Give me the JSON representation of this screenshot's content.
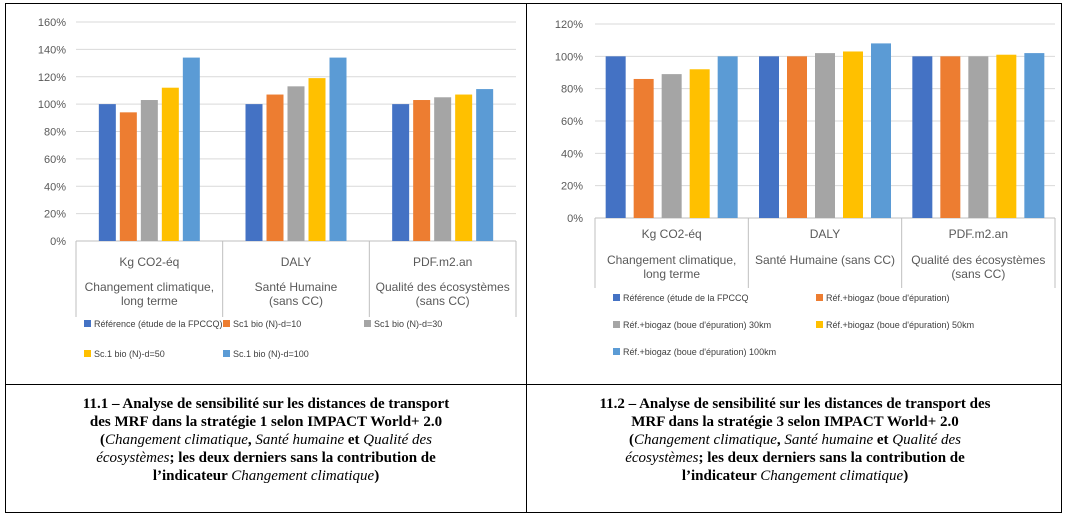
{
  "chart_data": [
    {
      "type": "bar",
      "categories": [
        "Kg CO2-éq",
        "DALY",
        "PDF.m2.an"
      ],
      "subcategories": [
        "Changement climatique,\nlong terme",
        "Santé Humaine\n(sans CC)",
        "Qualité des écosystèmes\n(sans CC)"
      ],
      "ylim": [
        0,
        160
      ],
      "yticks": [
        "0%",
        "20%",
        "40%",
        "60%",
        "80%",
        "100%",
        "120%",
        "140%",
        "160%"
      ],
      "series": [
        {
          "name": "Référence (étude de la FPCCQ)",
          "color": "#4472C4",
          "values": [
            100,
            100,
            100
          ]
        },
        {
          "name": "Sc1 bio (N)-d=10",
          "color": "#ED7D31",
          "values": [
            94,
            107,
            103
          ]
        },
        {
          "name": "Sc1 bio (N)-d=30",
          "color": "#A5A5A5",
          "values": [
            103,
            113,
            105
          ]
        },
        {
          "name": "Sc.1 bio (N)-d=50",
          "color": "#FFC000",
          "values": [
            112,
            119,
            107
          ]
        },
        {
          "name": "Sc.1 bio (N)-d=100",
          "color": "#5B9BD5",
          "values": [
            134,
            134,
            111
          ]
        }
      ]
    },
    {
      "type": "bar",
      "categories": [
        "Kg CO2-éq",
        "DALY",
        "PDF.m2.an"
      ],
      "subcategories": [
        "Changement climatique,\nlong terme",
        "Santé Humaine (sans CC)",
        "Qualité des écosystèmes\n(sans CC)"
      ],
      "ylim": [
        0,
        120
      ],
      "yticks": [
        "0%",
        "20%",
        "40%",
        "60%",
        "80%",
        "100%",
        "120%"
      ],
      "series": [
        {
          "name": "Référence (étude de la FPCCQ",
          "color": "#4472C4",
          "values": [
            100,
            100,
            100
          ]
        },
        {
          "name": "Réf.+biogaz (boue d'épuration)",
          "color": "#ED7D31",
          "values": [
            86,
            100,
            100
          ]
        },
        {
          "name": "Réf.+biogaz (boue d'épuration) 30km",
          "color": "#A5A5A5",
          "values": [
            89,
            102,
            100
          ]
        },
        {
          "name": "Réf.+biogaz (boue d'épuration) 50km",
          "color": "#FFC000",
          "values": [
            92,
            103,
            101
          ]
        },
        {
          "name": "Réf.+biogaz (boue d'épuration) 100km",
          "color": "#5B9BD5",
          "values": [
            100,
            108,
            102
          ]
        }
      ]
    }
  ],
  "captions": [
    {
      "line1": "11.1 – Analyse de sensibilité sur les distances de transport",
      "line2": "des MRF dans la stratégie 1 selon IMPACT World+ 2.0",
      "open_paren": "(",
      "ital1": "Changement climatique",
      "comma": ", ",
      "ital2": "Santé humaine",
      "et": " et ",
      "ital3": "Qualité des",
      "ital4": "écosystèmes",
      "rest1": "; les deux derniers sans la contribution de",
      "rest2a": "l’indicateur ",
      "ital5": "Changement climatique",
      "close": ")"
    },
    {
      "line1": "11.2 – Analyse de sensibilité sur les distances de transport des",
      "line2": "MRF dans la stratégie 3 selon IMPACT World+ 2.0",
      "open_paren": "(",
      "ital1": "Changement climatique",
      "comma": ", ",
      "ital2": "Santé humaine",
      "et": " et ",
      "ital3": "Qualité des",
      "ital4": "écosystèmes",
      "rest1": "; les deux derniers sans la contribution de",
      "rest2a": "l’indicateur ",
      "ital5": "Changement climatique",
      "close": ")"
    }
  ]
}
